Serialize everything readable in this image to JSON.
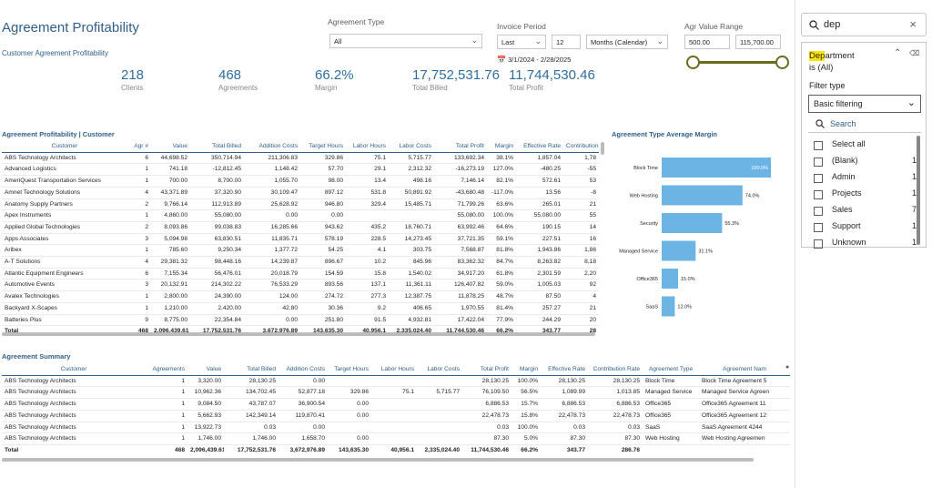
{
  "header": {
    "title": "Agreement Profitability",
    "subtitle": "Customer Agreement Profitability"
  },
  "kpis": [
    {
      "value": "218",
      "label": "Clients"
    },
    {
      "value": "468",
      "label": "Agreements"
    },
    {
      "value": "66.2%",
      "label": "Margin"
    },
    {
      "value": "17,752,531.76",
      "label": "Total Billed"
    },
    {
      "value": "11,744,530.46",
      "label": "Total Profit"
    }
  ],
  "slicers": {
    "agreement_type": {
      "label": "Agreement Type",
      "value": "All"
    },
    "invoice_period": {
      "label": "Invoice Period",
      "mode": "Last",
      "count": "12",
      "unit": "Months (Calendar)",
      "range": "3/1/2024 - 2/28/2025"
    },
    "value_range": {
      "label": "Agr Value Range",
      "min": "500.00",
      "max": "115,700.00"
    }
  },
  "table1": {
    "title": "Agreement Profitability | Customer",
    "columns": [
      "Customer",
      "Agr #",
      "Value",
      "Total Billed",
      "Addition Costs",
      "Target Hours",
      "Labor Hours",
      "Labor Costs",
      "Total Profit",
      "Margin",
      "Effective Rate",
      "Contribution"
    ],
    "rows": [
      [
        "ABS Technology Architects",
        "6",
        "44,698.52",
        "350,714.94",
        "211,306.83",
        "329.86",
        "75.1",
        "5,715.77",
        "133,692.34",
        "38.1%",
        "1,857.04",
        "1,78"
      ],
      [
        "Advanced Logistics",
        "1",
        "741.18",
        "-12,812.45",
        "1,148.42",
        "57.70",
        "29.1",
        "2,312.32",
        "-16,273.19",
        "127.0%",
        "-480.25",
        "-55"
      ],
      [
        "AmeriQuest Transportation Services",
        "1",
        "700.00",
        "8,700.00",
        "1,055.70",
        "98.00",
        "13.4",
        "498.16",
        "7,146.14",
        "82.1%",
        "572.61",
        "53"
      ],
      [
        "Amnet Technology Solutions",
        "4",
        "43,371.89",
        "37,320.90",
        "30,109.47",
        "897.12",
        "531.8",
        "50,891.92",
        "-43,680.48",
        "-117.0%",
        "13.56",
        "-8"
      ],
      [
        "Anatomy Supply Partners",
        "2",
        "9,766.14",
        "112,913.89",
        "25,628.92",
        "946.80",
        "329.4",
        "15,485.71",
        "71,799.26",
        "63.6%",
        "265.01",
        "21"
      ],
      [
        "Apex Instruments",
        "1",
        "4,860.00",
        "55,080.00",
        "0.00",
        "0.00",
        "",
        "",
        "55,080.00",
        "100.0%",
        "55,080.00",
        "55"
      ],
      [
        "Applied Global Technologies",
        "2",
        "8,093.86",
        "99,038.83",
        "16,285.66",
        "943.62",
        "435.2",
        "18,760.71",
        "63,992.46",
        "64.6%",
        "190.15",
        "14"
      ],
      [
        "Apps Associates",
        "3",
        "5,094.98",
        "63,830.51",
        "11,835.71",
        "578.19",
        "228.5",
        "14,273.45",
        "37,721.35",
        "59.1%",
        "227.51",
        "16"
      ],
      [
        "Aribex",
        "1",
        "785.60",
        "9,250.34",
        "1,377.72",
        "54.25",
        "4.1",
        "303.75",
        "7,568.87",
        "81.8%",
        "1,943.86",
        "1,86"
      ],
      [
        "A-T Solutions",
        "4",
        "29,381.32",
        "98,448.16",
        "14,239.87",
        "896.67",
        "10.2",
        "845.96",
        "83,362.32",
        "84.7%",
        "8,263.82",
        "8,18"
      ],
      [
        "Atlantic Equipment Engineers",
        "6",
        "7,155.34",
        "56,476.01",
        "20,018.79",
        "154.59",
        "15.8",
        "1,540.02",
        "34,917.20",
        "61.8%",
        "2,301.59",
        "2,20"
      ],
      [
        "Automotive Events",
        "3",
        "20,132.91",
        "214,302.22",
        "76,533.29",
        "893.56",
        "137.1",
        "11,361.11",
        "126,407.82",
        "59.0%",
        "1,005.03",
        "92"
      ],
      [
        "Avalex Technologies",
        "1",
        "2,800.00",
        "24,390.00",
        "124.00",
        "274.72",
        "277.3",
        "12,387.75",
        "11,878.25",
        "48.7%",
        "87.50",
        "4"
      ],
      [
        "Backyard X-Scapes",
        "1",
        "1,210.00",
        "2,420.00",
        "42.80",
        "30.36",
        "9.2",
        "406.65",
        "1,970.55",
        "81.4%",
        "257.27",
        "21"
      ],
      [
        "Batteries Plus",
        "9",
        "8,775.00",
        "22,354.84",
        "0.00",
        "251.80",
        "91.5",
        "4,932.81",
        "17,422.04",
        "77.9%",
        "244.29",
        "20"
      ]
    ],
    "total": [
      "Total",
      "468",
      "2,096,439.61",
      "17,752,531.76",
      "3,672,976.89",
      "143,635.30",
      "40,956.1",
      "2,335,024.40",
      "11,744,530.46",
      "66.2%",
      "343.77",
      "28"
    ]
  },
  "chart": {
    "title": "Agreement Type Average Margin"
  },
  "chart_data": {
    "type": "bar",
    "orientation": "horizontal",
    "title": "Agreement Type Average Margin",
    "categories": [
      "Block Time",
      "Web Hosting",
      "Security",
      "Managed Service",
      "Office365",
      "SaaS"
    ],
    "values": [
      100.0,
      74.0,
      55.3,
      31.1,
      15.0,
      12.0
    ],
    "value_labels": [
      "100.0%",
      "74.0%",
      "55.3%",
      "31.1%",
      "15.0%",
      "12.0%"
    ],
    "xlim": [
      0,
      100
    ],
    "color": "#6cb4e4"
  },
  "table2": {
    "title": "Agreement Summary",
    "columns": [
      "Customer",
      "Agreements",
      "Value",
      "Total Billed",
      "Addition Costs",
      "Target Hours",
      "Labor Hours",
      "Labor Costs",
      "Total Profit",
      "Margin",
      "Effective Rate",
      "Contribution Rate",
      "Agreement Type",
      "Agreement Nam"
    ],
    "rows": [
      [
        "ABS Technology Architects",
        "1",
        "3,320.00",
        "28,130.25",
        "0.00",
        "",
        "",
        "",
        "28,130.25",
        "100.0%",
        "28,130.25",
        "28,130.25",
        "Block Time",
        "Block Time Agreement 5"
      ],
      [
        "ABS Technology Architects",
        "1",
        "10,962.36",
        "134,702.45",
        "52,877.18",
        "329.86",
        "75.1",
        "5,715.77",
        "76,109.50",
        "56.5%",
        "1,089.99",
        "1,013.85",
        "Managed Service",
        "Managed Service Agreen"
      ],
      [
        "ABS Technology Architects",
        "1",
        "9,084.50",
        "43,787.07",
        "36,900.54",
        "0.00",
        "",
        "",
        "6,886.53",
        "15.7%",
        "6,886.53",
        "6,886.53",
        "Office365",
        "Office365 Agreement 11"
      ],
      [
        "ABS Technology Architects",
        "1",
        "5,662.93",
        "142,349.14",
        "119,870.41",
        "0.00",
        "",
        "",
        "22,478.73",
        "15.8%",
        "22,478.73",
        "22,478.73",
        "Office365",
        "Office365 Agreement 12"
      ],
      [
        "ABS Technology Architects",
        "1",
        "13,922.73",
        "0.03",
        "0.00",
        "",
        "",
        "",
        "0.03",
        "100.0%",
        "0.03",
        "0.03",
        "SaaS",
        "SaaS Agreement 4244"
      ],
      [
        "ABS Technology Architects",
        "1",
        "1,746.00",
        "1,746.00",
        "1,658.70",
        "0.00",
        "",
        "",
        "87.30",
        "5.0%",
        "87.30",
        "87.30",
        "Web Hosting",
        "Web Hosting Agreemen"
      ]
    ],
    "total": [
      "Total",
      "468",
      "2,096,439.61",
      "17,752,531.76",
      "3,672,976.89",
      "143,635.30",
      "40,956.1",
      "2,335,024.40",
      "11,744,530.46",
      "66.2%",
      "343.77",
      "286.76",
      "",
      ""
    ]
  },
  "filter_pane": {
    "search_value": "dep",
    "field_highlight": "Dep",
    "field_rest": "artment",
    "field_state": "is (All)",
    "filter_type_label": "Filter type",
    "filter_type_value": "Basic filtering",
    "search_placeholder": "Search",
    "items": [
      {
        "label": "Select all",
        "count": ""
      },
      {
        "label": "(Blank)",
        "count": "1"
      },
      {
        "label": "Admin",
        "count": "1"
      },
      {
        "label": "Projects",
        "count": "1"
      },
      {
        "label": "Sales",
        "count": "7"
      },
      {
        "label": "Support",
        "count": "1"
      },
      {
        "label": "Unknown",
        "count": "1"
      }
    ]
  }
}
